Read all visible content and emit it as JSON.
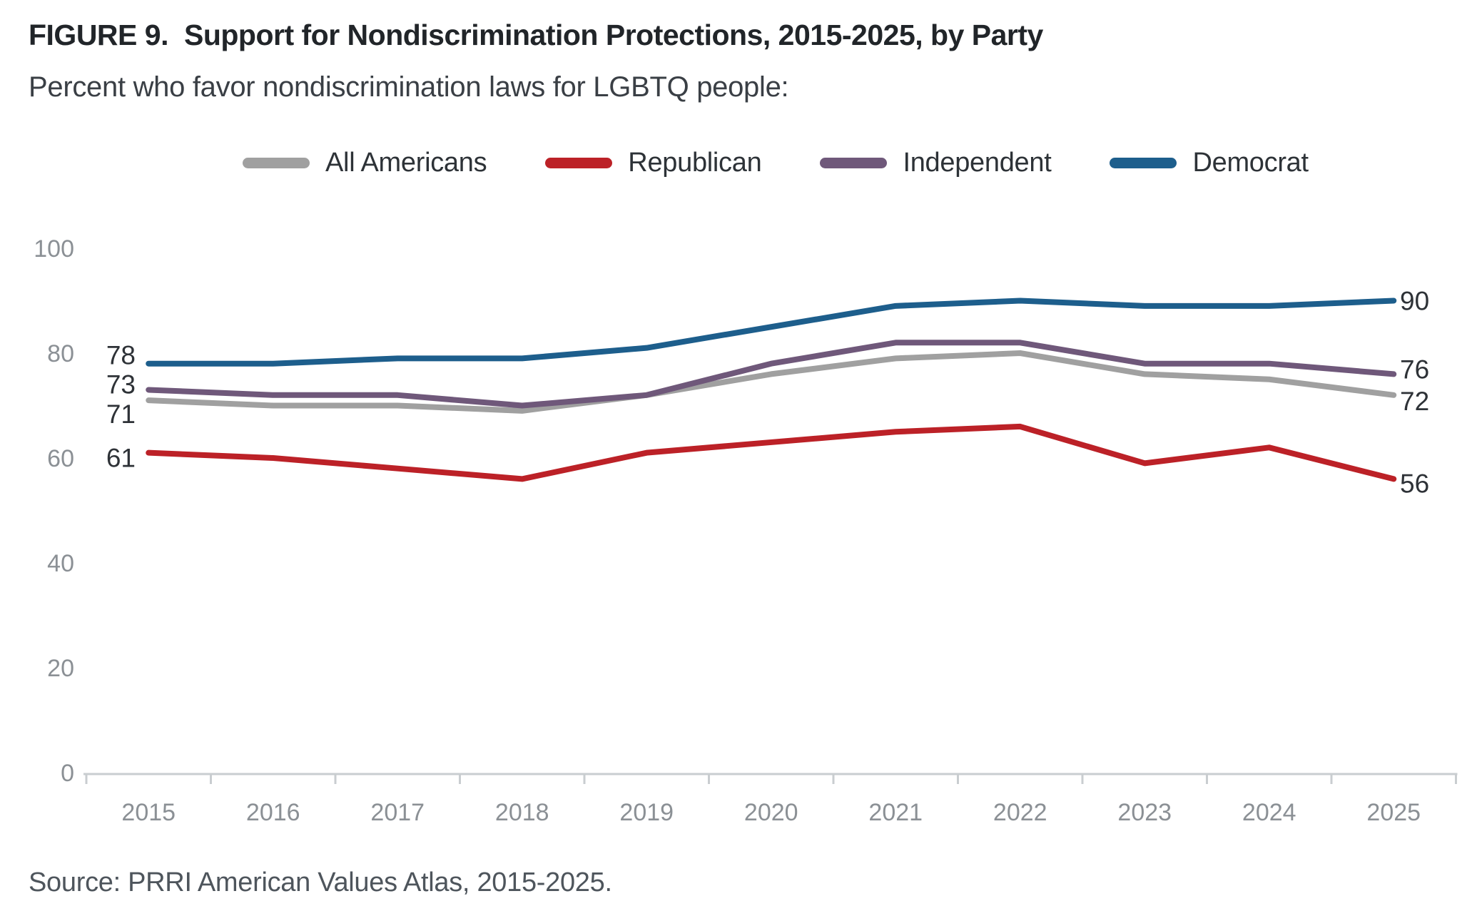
{
  "figure": {
    "label": "FIGURE 9.",
    "title": "Support for Nondiscrimination Protections, 2015-2025, by Party",
    "subtitle": "Percent who favor nondiscrimination laws for LGBTQ people:",
    "source": "Source: PRRI American Values Atlas, 2015-2025."
  },
  "chart_data": {
    "type": "line",
    "title": "Support for Nondiscrimination Protections, 2015-2025, by Party",
    "categories": [
      "2015",
      "2016",
      "2017",
      "2018",
      "2019",
      "2020",
      "2021",
      "2022",
      "2023",
      "2024",
      "2025"
    ],
    "series": [
      {
        "name": "All Americans",
        "color": "#A0A0A0",
        "values": [
          71,
          70,
          70,
          69,
          72,
          76,
          79,
          80,
          76,
          75,
          72
        ],
        "start_label": "71",
        "end_label": "72"
      },
      {
        "name": "Republican",
        "color": "#BC2127",
        "values": [
          61,
          60,
          58,
          56,
          61,
          63,
          65,
          66,
          59,
          62,
          56
        ],
        "start_label": "61",
        "end_label": "56"
      },
      {
        "name": "Independent",
        "color": "#6F587A",
        "values": [
          73,
          72,
          72,
          70,
          72,
          78,
          82,
          82,
          78,
          78,
          76
        ],
        "start_label": "73",
        "end_label": "76"
      },
      {
        "name": "Democrat",
        "color": "#1D5E8C",
        "values": [
          78,
          78,
          79,
          79,
          81,
          85,
          89,
          90,
          89,
          89,
          90
        ],
        "start_label": "78",
        "end_label": "90"
      }
    ],
    "xlabel": "",
    "ylabel": "",
    "ylim": [
      0,
      100
    ],
    "yticks": [
      0,
      20,
      40,
      60,
      80,
      100
    ],
    "grid": false,
    "legend_position": "top",
    "colors": {
      "axis_line": "#c9cdd0",
      "axis_labels": "#8b9095",
      "value_labels": "#2e3237"
    }
  }
}
